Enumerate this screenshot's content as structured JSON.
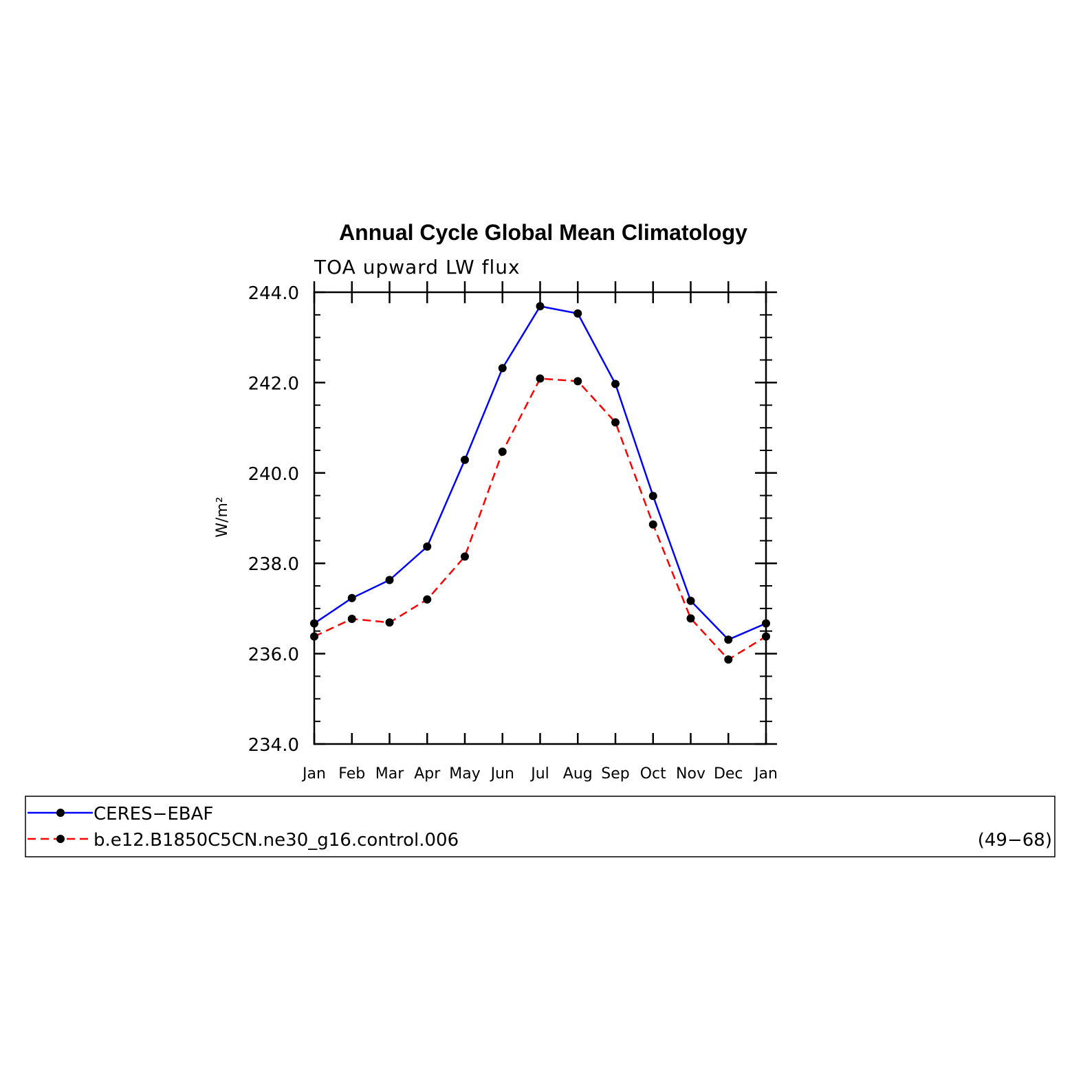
{
  "chart_data": {
    "type": "line",
    "title": "Annual Cycle Global Mean Climatology",
    "subtitle": "TOA upward LW flux",
    "ylabel": "W/m²",
    "xlabel": "",
    "categories": [
      "Jan",
      "Feb",
      "Mar",
      "Apr",
      "May",
      "Jun",
      "Jul",
      "Aug",
      "Sep",
      "Oct",
      "Nov",
      "Dec",
      "Jan"
    ],
    "ylim": [
      234.0,
      244.0
    ],
    "yticks": [
      "234.0",
      "236.0",
      "238.0",
      "240.0",
      "242.0",
      "244.0"
    ],
    "yminor_step": 0.5,
    "series": [
      {
        "name": "CERES−EBAF",
        "color": "#0000ff",
        "dash": "solid",
        "marker": "dot",
        "values": [
          236.67,
          237.23,
          237.63,
          238.37,
          240.29,
          242.32,
          243.69,
          243.53,
          241.97,
          239.49,
          237.17,
          236.31,
          236.67
        ]
      },
      {
        "name": "b.e12.B1850C5CN.ne30_g16.control.006",
        "color": "#ff0000",
        "dash": "dashed",
        "marker": "dot",
        "values": [
          236.38,
          236.77,
          236.69,
          237.2,
          238.15,
          240.47,
          242.09,
          242.03,
          241.12,
          238.86,
          236.78,
          235.87,
          236.38
        ]
      }
    ],
    "legend": {
      "entries": [
        "CERES−EBAF",
        "b.e12.B1850C5CN.ne30_g16.control.006"
      ],
      "note": "(49−68)",
      "placement": "bottom"
    },
    "grid": false
  }
}
